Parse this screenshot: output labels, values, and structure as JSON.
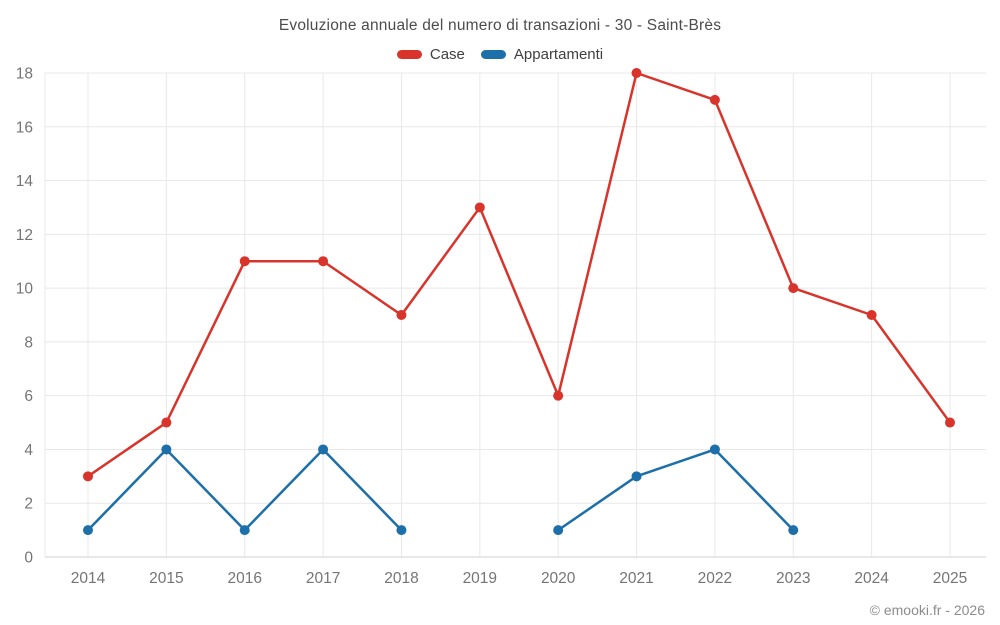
{
  "footer": {
    "copyright": "© emooki.fr - 2026"
  },
  "chart_data": {
    "type": "line",
    "title": "Evoluzione annuale del numero di transazioni - 30 - Saint-Brès",
    "categories": [
      "2014",
      "2015",
      "2016",
      "2017",
      "2018",
      "2019",
      "2020",
      "2021",
      "2022",
      "2023",
      "2024",
      "2025"
    ],
    "series": [
      {
        "name": "Case",
        "color": "#d9342b",
        "values": [
          3,
          5,
          11,
          11,
          9,
          13,
          6,
          18,
          17,
          10,
          9,
          5
        ]
      },
      {
        "name": "Appartamenti",
        "color": "#1c6fa8",
        "values": [
          1,
          4,
          1,
          4,
          1,
          null,
          1,
          3,
          4,
          1,
          null,
          null
        ]
      }
    ],
    "ylim": [
      0,
      18
    ],
    "ytick_step": 2,
    "grid": true,
    "legend_position": "top",
    "axis_label_color": "#757575",
    "grid_color": "#e8e8e8",
    "axis_line_color": "#d2d2d2"
  }
}
